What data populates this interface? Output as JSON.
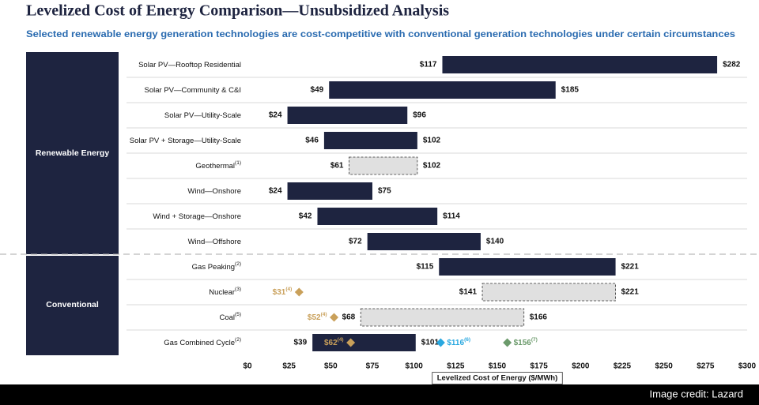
{
  "chart_data": {
    "type": "floating_bar",
    "title": "Levelized Cost of Energy Comparison—Unsubsidized Analysis",
    "subtitle": "Selected renewable energy generation technologies are cost-competitive with conventional generation technologies under certain circumstances",
    "xlabel": "Levelized Cost of Energy ($/MWh)",
    "xlim": [
      0,
      300
    ],
    "xticks": [
      {
        "value": 0,
        "label": "$0"
      },
      {
        "value": 25,
        "label": "$25"
      },
      {
        "value": 50,
        "label": "$50"
      },
      {
        "value": 75,
        "label": "$75"
      },
      {
        "value": 100,
        "label": "$100"
      },
      {
        "value": 125,
        "label": "$125"
      },
      {
        "value": 150,
        "label": "$150"
      },
      {
        "value": 175,
        "label": "$175"
      },
      {
        "value": 200,
        "label": "$200"
      },
      {
        "value": 225,
        "label": "$225"
      },
      {
        "value": 250,
        "label": "$250"
      },
      {
        "value": 275,
        "label": "$275"
      },
      {
        "value": 300,
        "label": "$300"
      }
    ],
    "color": "#1e2440",
    "dashed_color": "#e0e0e0",
    "groups": [
      {
        "name": "Renewable Energy",
        "rows": [
          {
            "category": "Solar PV—Rooftop Residential",
            "note": null,
            "low": 117,
            "high": 282,
            "low_label": "$117",
            "high_label": "$282",
            "style": "solid",
            "markers": []
          },
          {
            "category": "Solar PV—Community & C&I",
            "note": null,
            "low": 49,
            "high": 185,
            "low_label": "$49",
            "high_label": "$185",
            "style": "solid",
            "markers": []
          },
          {
            "category": "Solar PV—Utility-Scale",
            "note": null,
            "low": 24,
            "high": 96,
            "low_label": "$24",
            "high_label": "$96",
            "style": "solid",
            "markers": []
          },
          {
            "category": "Solar PV + Storage—Utility-Scale",
            "note": null,
            "low": 46,
            "high": 102,
            "low_label": "$46",
            "high_label": "$102",
            "style": "solid",
            "markers": []
          },
          {
            "category": "Geothermal",
            "note": "(1)",
            "low": 61,
            "high": 102,
            "low_label": "$61",
            "high_label": "$102",
            "style": "dashed",
            "markers": []
          },
          {
            "category": "Wind—Onshore",
            "note": null,
            "low": 24,
            "high": 75,
            "low_label": "$24",
            "high_label": "$75",
            "style": "solid",
            "markers": []
          },
          {
            "category": "Wind + Storage—Onshore",
            "note": null,
            "low": 42,
            "high": 114,
            "low_label": "$42",
            "high_label": "$114",
            "style": "solid",
            "markers": []
          },
          {
            "category": "Wind—Offshore",
            "note": null,
            "low": 72,
            "high": 140,
            "low_label": "$72",
            "high_label": "$140",
            "style": "solid",
            "markers": []
          }
        ]
      },
      {
        "name": "Conventional",
        "rows": [
          {
            "category": "Gas Peaking",
            "note": "(2)",
            "low": 115,
            "high": 221,
            "low_label": "$115",
            "high_label": "$221",
            "style": "solid",
            "markers": []
          },
          {
            "category": "Nuclear",
            "note": "(3)",
            "low": 141,
            "high": 221,
            "low_label": "$141",
            "high_label": "$221",
            "style": "dashed",
            "markers": [
              {
                "value": 31,
                "label": "$31",
                "note": "(4)",
                "color": "#c9a05a"
              }
            ]
          },
          {
            "category": "Coal",
            "note": "(5)",
            "low": 68,
            "high": 166,
            "low_label": "$68",
            "high_label": "$166",
            "style": "dashed",
            "markers": [
              {
                "value": 52,
                "label": "$52",
                "note": "(4)",
                "color": "#c9a05a"
              }
            ]
          },
          {
            "category": "Gas Combined Cycle",
            "note": "(2)",
            "low": 39,
            "high": 101,
            "low_label": "$39",
            "high_label": "$101",
            "style": "solid",
            "markers": [
              {
                "value": 62,
                "label": "$62",
                "note": "(4)",
                "color": "#c9a05a"
              },
              {
                "value": 116,
                "label": "$116",
                "note": "(6)",
                "color": "#29a8e0"
              },
              {
                "value": 156,
                "label": "$156",
                "note": "(7)",
                "color": "#6b9a6b"
              }
            ]
          }
        ]
      }
    ]
  },
  "credit": "Image credit: Lazard"
}
